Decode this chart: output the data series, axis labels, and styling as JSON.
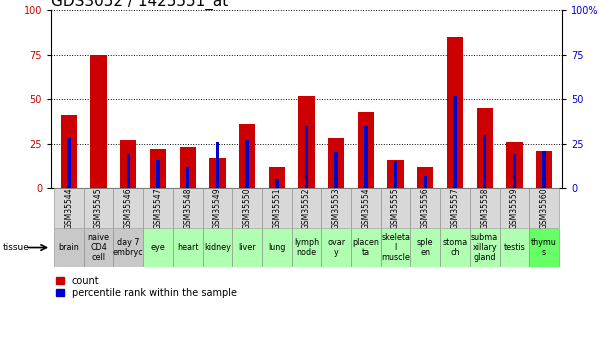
{
  "title": "GDS3052 / 1425551_at",
  "gsm_labels": [
    "GSM35544",
    "GSM35545",
    "GSM35546",
    "GSM35547",
    "GSM35548",
    "GSM35549",
    "GSM35550",
    "GSM35551",
    "GSM35552",
    "GSM35553",
    "GSM35554",
    "GSM35555",
    "GSM35556",
    "GSM35557",
    "GSM35558",
    "GSM35559",
    "GSM35560"
  ],
  "tissue_labels": [
    "brain",
    "naive\nCD4\ncell",
    "day 7\nembryc",
    "eye",
    "heart",
    "kidney",
    "liver",
    "lung",
    "lymph\nnode",
    "ovar\ny",
    "placen\nta",
    "skeleta\nl\nmuscle",
    "sple\nen",
    "stoma\nch",
    "subma\nxillary\ngland",
    "testis",
    "thymu\ns"
  ],
  "tissue_colors": [
    "#c8c8c8",
    "#c8c8c8",
    "#c8c8c8",
    "#b0ffb0",
    "#b0ffb0",
    "#b0ffb0",
    "#b0ffb0",
    "#b0ffb0",
    "#b0ffb0",
    "#b0ffb0",
    "#b0ffb0",
    "#b0ffb0",
    "#b0ffb0",
    "#b0ffb0",
    "#b0ffb0",
    "#b0ffb0",
    "#66ff66"
  ],
  "gsm_row_color": "#d8d8d8",
  "count_values": [
    41,
    75,
    27,
    22,
    23,
    17,
    36,
    12,
    52,
    28,
    43,
    16,
    12,
    85,
    45,
    26,
    21
  ],
  "percentile_values": [
    28,
    0,
    19,
    16,
    12,
    26,
    27,
    5,
    35,
    20,
    35,
    15,
    7,
    52,
    30,
    19,
    21
  ],
  "ylim": [
    0,
    100
  ],
  "yticks": [
    0,
    25,
    50,
    75,
    100
  ],
  "bar_color_red": "#cc0000",
  "bar_color_blue": "#0000cc",
  "grid_color": "#000000",
  "bg_color": "#ffffff",
  "ytick_color_left": "#cc0000",
  "ytick_color_right": "#0000cc",
  "red_bar_width": 0.55,
  "blue_bar_width": 0.12,
  "title_fontsize": 11,
  "ytick_fontsize": 7,
  "gsm_fontsize": 5.5,
  "tissue_fontsize": 5.8
}
